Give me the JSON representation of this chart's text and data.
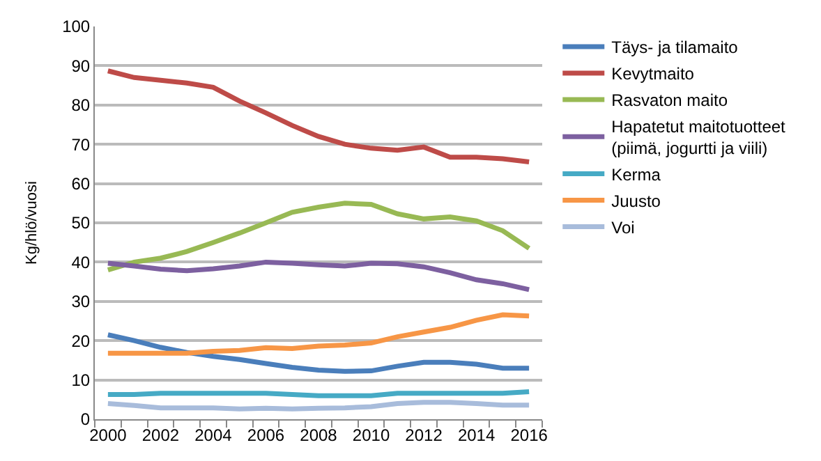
{
  "chart_data": {
    "type": "line",
    "ylabel": "Kg/hlö/vuosi",
    "categories": [
      "2000",
      null,
      "2002",
      null,
      "2004",
      null,
      "2006",
      null,
      "2008",
      null,
      "2010",
      null,
      "2012",
      null,
      "2014",
      null,
      "2016"
    ],
    "ylim": [
      0,
      100
    ],
    "yticks": [
      0,
      10,
      20,
      30,
      40,
      50,
      60,
      70,
      80,
      90,
      100
    ],
    "grid": "y",
    "legend": "right",
    "marker": "none",
    "line_style": "solid",
    "series": [
      {
        "name": "Täys- ja tilamaito",
        "color": "#4a7ebb",
        "values": [
          21.5,
          20,
          18.3,
          17,
          16,
          15.2,
          14.2,
          13.2,
          12.5,
          12.2,
          12.3,
          13.5,
          14.5,
          14.5,
          14,
          13,
          13
        ]
      },
      {
        "name": "Kevytmaito",
        "color": "#be4b48",
        "values": [
          88.7,
          87,
          86.3,
          85.6,
          84.5,
          81,
          78,
          74.8,
          72,
          70,
          69,
          68.5,
          69.3,
          66.7,
          66.7,
          66.3,
          65.5
        ]
      },
      {
        "name": "Rasvaton maito",
        "color": "#98b954",
        "values": [
          38,
          40,
          41,
          42.7,
          45,
          47.4,
          50,
          52.7,
          54,
          55,
          54.7,
          52.3,
          51,
          51.5,
          50.5,
          48,
          43.5
        ]
      },
      {
        "name": "Hapatetut maitotuotteet\n(piimä, jogurtti ja viili)",
        "color": "#7d60a0",
        "values": [
          39.7,
          39,
          38.2,
          37.8,
          38.3,
          39,
          40,
          39.7,
          39.3,
          39,
          39.7,
          39.6,
          38.8,
          37.3,
          35.5,
          34.5,
          33
        ]
      },
      {
        "name": "Kerma",
        "color": "#46aac5",
        "values": [
          6.3,
          6.3,
          6.6,
          6.6,
          6.6,
          6.6,
          6.6,
          6.3,
          6,
          6,
          6,
          6.6,
          6.6,
          6.6,
          6.6,
          6.6,
          7
        ]
      },
      {
        "name": "Juusto",
        "color": "#f79646",
        "values": [
          16.8,
          16.8,
          16.8,
          16.8,
          17.3,
          17.5,
          18.2,
          18,
          18.6,
          18.9,
          19.4,
          21,
          22.2,
          23.4,
          25.2,
          26.6,
          26.3
        ]
      },
      {
        "name": "Voi",
        "color": "#a8bcdb",
        "values": [
          4,
          3.5,
          2.9,
          2.9,
          2.9,
          2.6,
          2.8,
          2.6,
          2.8,
          2.9,
          3.2,
          4,
          4.3,
          4.3,
          4,
          3.6,
          3.6
        ]
      }
    ]
  }
}
